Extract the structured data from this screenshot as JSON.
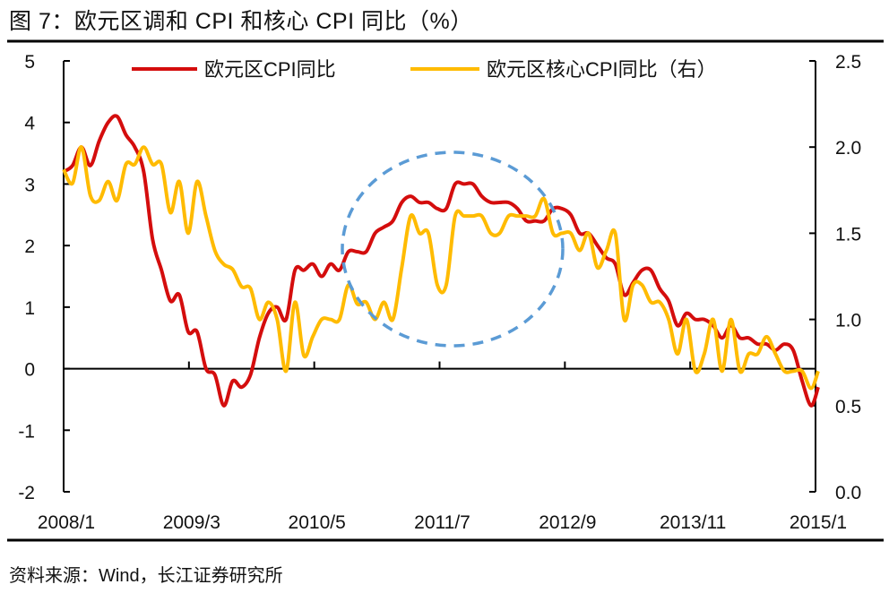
{
  "title": "图 7：欧元区调和 CPI 和核心 CPI 同比（%）",
  "source": "资料来源：Wind，长江证券研究所",
  "chart_data": {
    "type": "line",
    "title": "欧元区调和 CPI 和核心 CPI 同比（%）",
    "x_start": "2008/1",
    "x_tick_labels": [
      "2008/1",
      "2009/3",
      "2010/5",
      "2011/7",
      "2012/9",
      "2013/11",
      "2015/1"
    ],
    "y_left": {
      "ylim": [
        -2,
        5
      ],
      "ticks": [
        "5",
        "4",
        "3",
        "2",
        "1",
        "0",
        "-1",
        "-2"
      ],
      "tick_values": [
        5,
        4,
        3,
        2,
        1,
        0,
        -1,
        -2
      ]
    },
    "y_right": {
      "ylim": [
        0,
        2.5
      ],
      "ticks": [
        "2.5",
        "2.0",
        "1.5",
        "1.0",
        "0.5",
        "0.0"
      ],
      "tick_values": [
        2.5,
        2.0,
        1.5,
        1.0,
        0.5,
        0.0
      ]
    },
    "legend_position": "top",
    "annotation": "dashed circle highlighting 2010/10–2012/8",
    "series": [
      {
        "name": "欧元区CPI同比",
        "axis": "left",
        "color": "#d40d0d",
        "values": [
          3.2,
          3.3,
          3.6,
          3.3,
          3.7,
          4.0,
          4.1,
          3.8,
          3.6,
          3.2,
          2.1,
          1.6,
          1.1,
          1.2,
          0.6,
          0.6,
          0.0,
          -0.1,
          -0.6,
          -0.2,
          -0.3,
          -0.1,
          0.5,
          0.9,
          1.0,
          0.8,
          1.6,
          1.6,
          1.7,
          1.5,
          1.7,
          1.6,
          1.9,
          1.9,
          1.9,
          2.2,
          2.3,
          2.4,
          2.7,
          2.8,
          2.7,
          2.7,
          2.6,
          2.6,
          3.0,
          3.0,
          3.0,
          2.8,
          2.7,
          2.7,
          2.7,
          2.6,
          2.4,
          2.4,
          2.4,
          2.6,
          2.6,
          2.5,
          2.2,
          2.2,
          2.0,
          1.8,
          1.7,
          1.2,
          1.4,
          1.6,
          1.6,
          1.3,
          1.1,
          0.7,
          0.9,
          0.8,
          0.8,
          0.7,
          0.5,
          0.7,
          0.5,
          0.5,
          0.4,
          0.4,
          0.3,
          0.4,
          0.3,
          -0.2,
          -0.6,
          -0.3
        ]
      },
      {
        "name": "欧元区核心CPI同比（右）",
        "axis": "right",
        "color": "#ffbb00",
        "values": [
          1.87,
          1.79,
          2.0,
          1.72,
          1.69,
          1.8,
          1.69,
          1.9,
          1.9,
          2.0,
          1.9,
          1.9,
          1.62,
          1.8,
          1.5,
          1.8,
          1.6,
          1.4,
          1.32,
          1.29,
          1.19,
          1.18,
          1.0,
          1.1,
          1.0,
          0.7,
          1.1,
          0.79,
          0.9,
          1.0,
          1.0,
          1.0,
          1.2,
          1.09,
          1.1,
          1.0,
          1.1,
          1.0,
          1.3,
          1.6,
          1.5,
          1.5,
          1.2,
          1.2,
          1.6,
          1.6,
          1.6,
          1.6,
          1.5,
          1.5,
          1.6,
          1.6,
          1.6,
          1.6,
          1.7,
          1.5,
          1.5,
          1.5,
          1.4,
          1.5,
          1.3,
          1.4,
          1.5,
          1.0,
          1.2,
          1.2,
          1.1,
          1.1,
          1.0,
          0.8,
          1.0,
          0.7,
          0.8,
          1.0,
          0.7,
          1.0,
          0.7,
          0.8,
          0.8,
          0.9,
          0.8,
          0.7,
          0.7,
          0.7,
          0.6,
          0.7
        ]
      }
    ]
  }
}
